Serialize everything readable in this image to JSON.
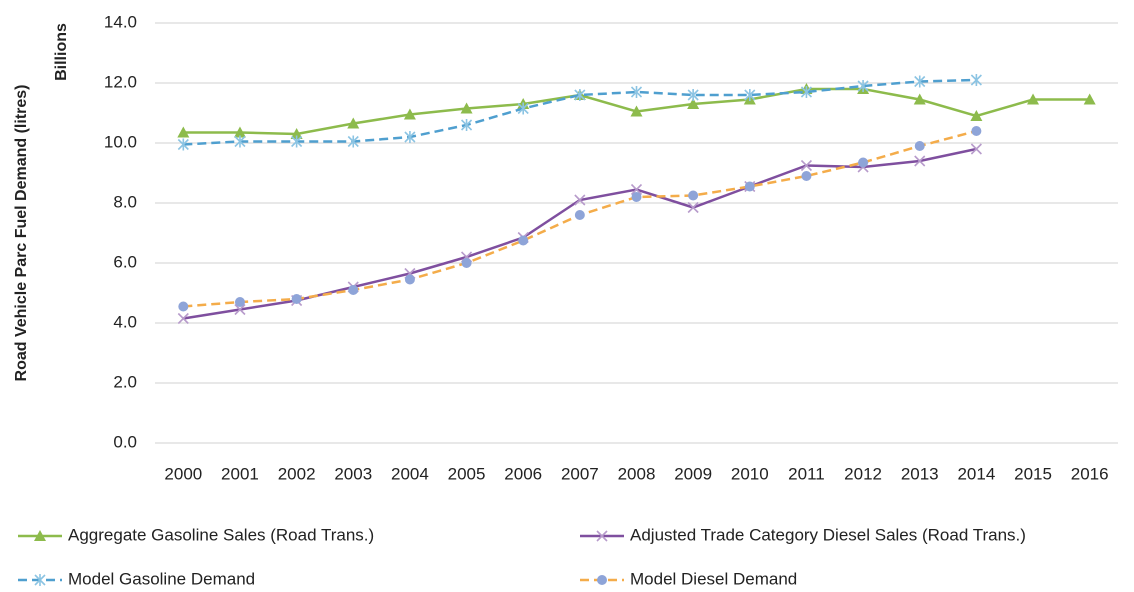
{
  "chart_data": {
    "type": "line",
    "y_label": "Road Vehicle Parc Fuel Demand (litres)",
    "unit_label": "Billions",
    "categories": [
      "2000",
      "2001",
      "2002",
      "2003",
      "2004",
      "2005",
      "2006",
      "2007",
      "2008",
      "2009",
      "2010",
      "2011",
      "2012",
      "2013",
      "2014",
      "2015",
      "2016"
    ],
    "ylim": [
      0,
      14
    ],
    "yticks": [
      {
        "value": 0,
        "label": "0.0"
      },
      {
        "value": 2,
        "label": "2.0"
      },
      {
        "value": 4,
        "label": "4.0"
      },
      {
        "value": 6,
        "label": "6.0"
      },
      {
        "value": 8,
        "label": "8.0"
      },
      {
        "value": 10,
        "label": "10.0"
      },
      {
        "value": 12,
        "label": "12.0"
      },
      {
        "value": 14,
        "label": "14.0"
      }
    ],
    "grid": true,
    "legend": "bottom",
    "series": [
      {
        "name": "Aggregate Gasoline Sales (Road Trans.)",
        "color": "#8DBB4C",
        "dash": false,
        "marker": "triangle",
        "marker_color": "#8DBB4C",
        "values": [
          10.35,
          10.35,
          10.3,
          10.65,
          10.95,
          11.15,
          11.3,
          11.6,
          11.05,
          11.3,
          11.45,
          11.8,
          11.8,
          11.45,
          10.9,
          11.45,
          11.45
        ]
      },
      {
        "name": "Adjusted Trade Category Diesel Sales (Road Trans.)",
        "color": "#7F4F9F",
        "dash": false,
        "marker": "x",
        "marker_color": "#B79BCB",
        "values": [
          4.15,
          4.45,
          4.75,
          5.2,
          5.65,
          6.2,
          6.85,
          8.1,
          8.45,
          7.85,
          8.55,
          9.25,
          9.2,
          9.4,
          9.8,
          null,
          null
        ]
      },
      {
        "name": "Model Gasoline Demand",
        "color": "#4F9FCF",
        "dash": true,
        "marker": "asterisk",
        "marker_color": "#8CC4E3",
        "values": [
          9.95,
          10.05,
          10.05,
          10.05,
          10.2,
          10.6,
          11.15,
          11.6,
          11.7,
          11.6,
          11.6,
          11.7,
          11.9,
          12.05,
          12.1,
          null,
          null
        ]
      },
      {
        "name": "Model Diesel Demand",
        "color": "#F4AC4A",
        "dash": true,
        "marker": "circle",
        "marker_color": "#8EA4D8",
        "values": [
          4.55,
          4.7,
          4.8,
          5.1,
          5.45,
          6.0,
          6.75,
          7.6,
          8.2,
          8.25,
          8.55,
          8.9,
          9.35,
          9.9,
          10.4,
          null,
          null
        ]
      }
    ]
  }
}
